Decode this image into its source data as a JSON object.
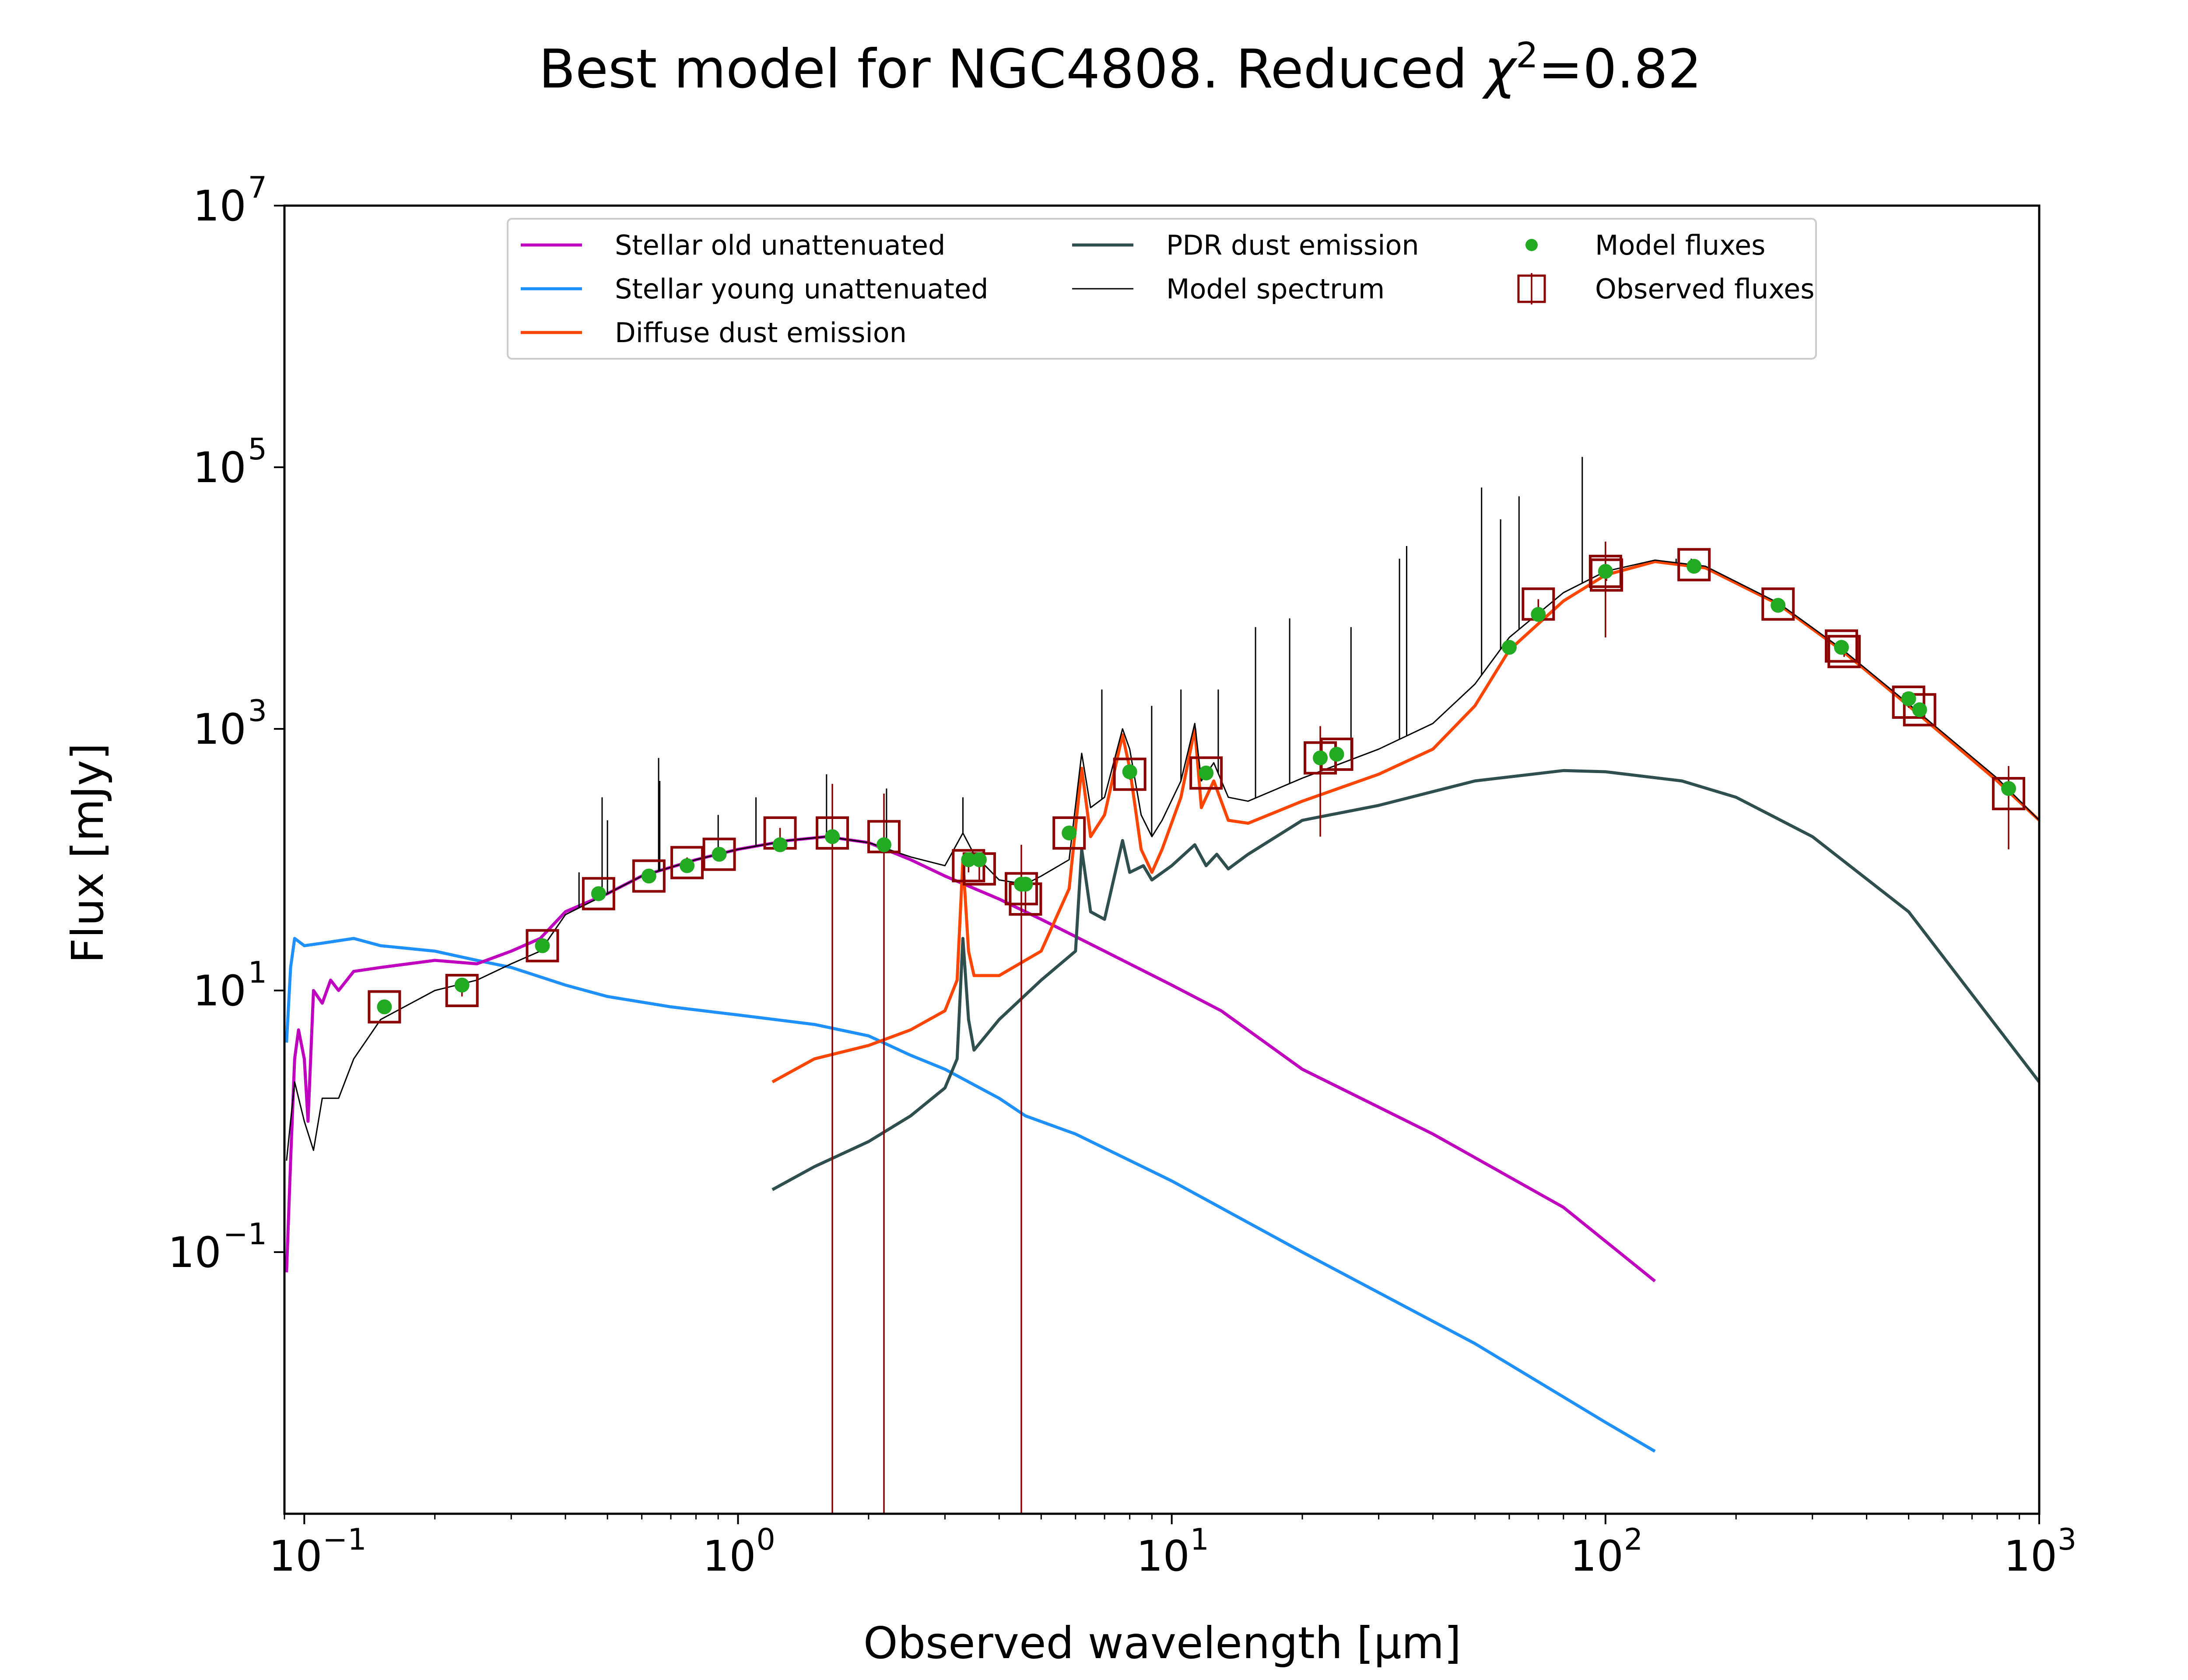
{
  "chart_data": {
    "type": "line",
    "title_text": "Best model for NGC4808. Reduced ",
    "title_chi": "χ",
    "title_sup": "2",
    "title_value": "=0.82",
    "xlabel": "Observed wavelength [μm]",
    "ylabel": "Flux [mJy]",
    "xscale": "log",
    "yscale": "log",
    "xlim": [
      0.09,
      1000
    ],
    "ylim": [
      0.001,
      10000000
    ],
    "x_ticks": [
      {
        "value": 0.1,
        "base": "10",
        "exp": "−1"
      },
      {
        "value": 1,
        "base": "10",
        "exp": "0"
      },
      {
        "value": 10,
        "base": "10",
        "exp": "1"
      },
      {
        "value": 100,
        "base": "10",
        "exp": "2"
      },
      {
        "value": 1000,
        "base": "10",
        "exp": "3"
      }
    ],
    "y_ticks": [
      {
        "value": 0.1,
        "base": "10",
        "exp": "−1"
      },
      {
        "value": 10,
        "base": "10",
        "exp": "1"
      },
      {
        "value": 1000,
        "base": "10",
        "exp": "3"
      },
      {
        "value": 100000,
        "base": "10",
        "exp": "5"
      },
      {
        "value": 10000000,
        "base": "10",
        "exp": "7"
      }
    ],
    "legend_position": "top-center",
    "colors": {
      "stellar_old": "#bf00bf",
      "stellar_young": "#1e90ff",
      "diffuse_dust": "#ff4500",
      "pdr_dust": "#2f4f4f",
      "model_spectrum": "#000000",
      "model_fluxes": "#22aa22",
      "observed_fluxes": "#8b0000"
    },
    "series": [
      {
        "name": "Stellar old unattenuated",
        "key": "stellar_old",
        "points": [
          [
            0.091,
            0.07
          ],
          [
            0.093,
            0.5
          ],
          [
            0.095,
            3
          ],
          [
            0.097,
            5
          ],
          [
            0.1,
            3
          ],
          [
            0.102,
            1
          ],
          [
            0.105,
            10
          ],
          [
            0.11,
            8
          ],
          [
            0.115,
            12
          ],
          [
            0.12,
            10
          ],
          [
            0.13,
            14
          ],
          [
            0.15,
            15
          ],
          [
            0.2,
            17
          ],
          [
            0.25,
            16
          ],
          [
            0.3,
            20
          ],
          [
            0.35,
            25
          ],
          [
            0.4,
            40
          ],
          [
            0.5,
            55
          ],
          [
            0.6,
            75
          ],
          [
            0.8,
            100
          ],
          [
            1.0,
            120
          ],
          [
            1.3,
            140
          ],
          [
            1.6,
            150
          ],
          [
            2.0,
            135
          ],
          [
            2.5,
            100
          ],
          [
            3.0,
            75
          ],
          [
            4.0,
            50
          ],
          [
            5.0,
            35
          ],
          [
            7.0,
            20
          ],
          [
            10.0,
            11
          ],
          [
            13.0,
            7
          ],
          [
            20.0,
            2.5
          ],
          [
            40.0,
            0.8
          ],
          [
            80.0,
            0.22
          ],
          [
            130.0,
            0.06
          ]
        ]
      },
      {
        "name": "Stellar young unattenuated",
        "key": "stellar_young",
        "points": [
          [
            0.091,
            4
          ],
          [
            0.093,
            15
          ],
          [
            0.095,
            25
          ],
          [
            0.1,
            22
          ],
          [
            0.11,
            23
          ],
          [
            0.13,
            25
          ],
          [
            0.15,
            22
          ],
          [
            0.2,
            20
          ],
          [
            0.25,
            17
          ],
          [
            0.3,
            15
          ],
          [
            0.4,
            11
          ],
          [
            0.5,
            9
          ],
          [
            0.7,
            7.5
          ],
          [
            1.0,
            6.5
          ],
          [
            1.5,
            5.5
          ],
          [
            2.0,
            4.5
          ],
          [
            2.5,
            3.2
          ],
          [
            3.0,
            2.5
          ],
          [
            4.0,
            1.5
          ],
          [
            4.6,
            1.1
          ],
          [
            6.0,
            0.8
          ],
          [
            10.0,
            0.35
          ],
          [
            20.0,
            0.1
          ],
          [
            50.0,
            0.02
          ],
          [
            100.0,
            0.005
          ],
          [
            130.0,
            0.003
          ]
        ]
      },
      {
        "name": "Diffuse dust emission",
        "key": "diffuse_dust",
        "points": [
          [
            1.2,
            2.0
          ],
          [
            1.5,
            3.0
          ],
          [
            2.0,
            3.8
          ],
          [
            2.5,
            5
          ],
          [
            3.0,
            7
          ],
          [
            3.2,
            12
          ],
          [
            3.3,
            100
          ],
          [
            3.4,
            20
          ],
          [
            3.5,
            13
          ],
          [
            4.0,
            13
          ],
          [
            5.0,
            20
          ],
          [
            5.8,
            60
          ],
          [
            6.2,
            500
          ],
          [
            6.5,
            150
          ],
          [
            7.0,
            220
          ],
          [
            7.7,
            900
          ],
          [
            8.0,
            500
          ],
          [
            8.5,
            120
          ],
          [
            9.0,
            80
          ],
          [
            9.5,
            120
          ],
          [
            10.5,
            300
          ],
          [
            11.3,
            1000
          ],
          [
            11.7,
            250
          ],
          [
            12.5,
            400
          ],
          [
            13.5,
            200
          ],
          [
            15.0,
            190
          ],
          [
            20.0,
            280
          ],
          [
            30.0,
            450
          ],
          [
            40.0,
            700
          ],
          [
            50.0,
            1500
          ],
          [
            60.0,
            4000
          ],
          [
            80.0,
            9500
          ],
          [
            100.0,
            15000
          ],
          [
            130.0,
            19000
          ],
          [
            170.0,
            17000
          ],
          [
            250.0,
            9000
          ],
          [
            350.0,
            4000
          ],
          [
            500.0,
            1500
          ],
          [
            800.0,
            400
          ],
          [
            1000.0,
            200
          ]
        ]
      },
      {
        "name": "PDR dust emission",
        "key": "pdr_dust",
        "points": [
          [
            1.2,
            0.3
          ],
          [
            1.5,
            0.45
          ],
          [
            2.0,
            0.7
          ],
          [
            2.5,
            1.1
          ],
          [
            3.0,
            1.8
          ],
          [
            3.2,
            3
          ],
          [
            3.3,
            25
          ],
          [
            3.4,
            6
          ],
          [
            3.5,
            3.5
          ],
          [
            4.0,
            6
          ],
          [
            5.0,
            12
          ],
          [
            6.0,
            20
          ],
          [
            6.2,
            120
          ],
          [
            6.5,
            40
          ],
          [
            7.0,
            35
          ],
          [
            7.7,
            140
          ],
          [
            8.0,
            80
          ],
          [
            8.6,
            90
          ],
          [
            9.0,
            70
          ],
          [
            10.0,
            90
          ],
          [
            11.3,
            130
          ],
          [
            12.0,
            90
          ],
          [
            12.7,
            110
          ],
          [
            13.5,
            85
          ],
          [
            15.0,
            110
          ],
          [
            20.0,
            200
          ],
          [
            30.0,
            260
          ],
          [
            50.0,
            400
          ],
          [
            80.0,
            480
          ],
          [
            100.0,
            470
          ],
          [
            150.0,
            400
          ],
          [
            200.0,
            300
          ],
          [
            300.0,
            150
          ],
          [
            500.0,
            40
          ],
          [
            1000.0,
            2
          ]
        ]
      },
      {
        "name": "Model spectrum",
        "key": "model_spectrum",
        "points": [
          [
            0.091,
            0.5
          ],
          [
            0.095,
            2
          ],
          [
            0.1,
            1
          ],
          [
            0.105,
            0.6
          ],
          [
            0.11,
            1.5
          ],
          [
            0.12,
            1.5
          ],
          [
            0.13,
            3
          ],
          [
            0.15,
            6
          ],
          [
            0.2,
            10
          ],
          [
            0.25,
            12
          ],
          [
            0.3,
            16
          ],
          [
            0.35,
            20
          ],
          [
            0.4,
            38
          ],
          [
            0.5,
            55
          ],
          [
            0.6,
            75
          ],
          [
            0.8,
            100
          ],
          [
            1.0,
            120
          ],
          [
            1.3,
            140
          ],
          [
            1.6,
            150
          ],
          [
            2.0,
            135
          ],
          [
            2.5,
            105
          ],
          [
            3.0,
            90
          ],
          [
            3.3,
            160
          ],
          [
            3.5,
            110
          ],
          [
            4.0,
            70
          ],
          [
            4.6,
            65
          ],
          [
            5.0,
            75
          ],
          [
            5.8,
            100
          ],
          [
            6.2,
            650
          ],
          [
            6.5,
            250
          ],
          [
            7.0,
            300
          ],
          [
            7.7,
            1000
          ],
          [
            8.0,
            700
          ],
          [
            8.5,
            220
          ],
          [
            9.0,
            150
          ],
          [
            9.5,
            200
          ],
          [
            10.5,
            400
          ],
          [
            11.3,
            1100
          ],
          [
            11.7,
            400
          ],
          [
            12.5,
            550
          ],
          [
            13.5,
            300
          ],
          [
            15.0,
            280
          ],
          [
            20.0,
            420
          ],
          [
            30.0,
            700
          ],
          [
            40.0,
            1100
          ],
          [
            50.0,
            2200
          ],
          [
            60.0,
            5000
          ],
          [
            80.0,
            11000
          ],
          [
            100.0,
            16000
          ],
          [
            130.0,
            19500
          ],
          [
            170.0,
            17500
          ],
          [
            250.0,
            9200
          ],
          [
            350.0,
            4100
          ],
          [
            500.0,
            1550
          ],
          [
            800.0,
            420
          ],
          [
            1000.0,
            200
          ]
        ],
        "lines": [
          [
            0.43,
            80
          ],
          [
            0.486,
            300
          ],
          [
            0.5,
            200
          ],
          [
            0.656,
            600
          ],
          [
            0.66,
            400
          ],
          [
            0.9,
            220
          ],
          [
            1.1,
            300
          ],
          [
            1.6,
            450
          ],
          [
            2.2,
            350
          ],
          [
            3.3,
            300
          ],
          [
            6.9,
            2000
          ],
          [
            8.99,
            1500
          ],
          [
            10.5,
            2000
          ],
          [
            12.8,
            2000
          ],
          [
            15.6,
            6000
          ],
          [
            18.7,
            7000
          ],
          [
            25.9,
            6000
          ],
          [
            33.5,
            20000
          ],
          [
            34.8,
            25000
          ],
          [
            51.8,
            70000
          ],
          [
            57.3,
            40000
          ],
          [
            63.2,
            60000
          ],
          [
            88.4,
            120000
          ],
          [
            145.5,
            20000
          ],
          [
            157.7,
            20000
          ]
        ]
      }
    ],
    "model_fluxes": [
      [
        0.153,
        7.5
      ],
      [
        0.231,
        11
      ],
      [
        0.354,
        22
      ],
      [
        0.477,
        55
      ],
      [
        0.623,
        75
      ],
      [
        0.763,
        90
      ],
      [
        0.905,
        110
      ],
      [
        1.25,
        130
      ],
      [
        1.65,
        150
      ],
      [
        2.17,
        130
      ],
      [
        3.4,
        100
      ],
      [
        3.6,
        100
      ],
      [
        4.5,
        65
      ],
      [
        4.6,
        65
      ],
      [
        5.8,
        160
      ],
      [
        8.0,
        470
      ],
      [
        12.0,
        460
      ],
      [
        22.0,
        600
      ],
      [
        24.0,
        640
      ],
      [
        60.0,
        4200
      ],
      [
        70.0,
        7500
      ],
      [
        100.0,
        16000
      ],
      [
        160.0,
        17500
      ],
      [
        250.0,
        8800
      ],
      [
        350.0,
        4200
      ],
      [
        500.0,
        1700
      ],
      [
        530.0,
        1400
      ],
      [
        850.0,
        350
      ]
    ],
    "observed_fluxes": [
      {
        "x": 0.153,
        "y": 7.5,
        "lo": 6.8,
        "hi": 8.3
      },
      {
        "x": 0.231,
        "y": 10,
        "lo": 9,
        "hi": 11
      },
      {
        "x": 0.354,
        "y": 22,
        "lo": 20,
        "hi": 24
      },
      {
        "x": 0.477,
        "y": 55,
        "lo": 50,
        "hi": 60
      },
      {
        "x": 0.623,
        "y": 75,
        "lo": 68,
        "hi": 82
      },
      {
        "x": 0.763,
        "y": 95,
        "lo": 86,
        "hi": 104
      },
      {
        "x": 0.905,
        "y": 110,
        "lo": 100,
        "hi": 120
      },
      {
        "x": 1.25,
        "y": 160,
        "lo": 145,
        "hi": 175
      },
      {
        "x": 1.65,
        "y": 160,
        "lo": 0.001,
        "hi": 380
      },
      {
        "x": 2.17,
        "y": 150,
        "lo": 0.001,
        "hi": 320
      },
      {
        "x": 3.4,
        "y": 90,
        "lo": 80,
        "hi": 100
      },
      {
        "x": 3.6,
        "y": 85,
        "lo": 70,
        "hi": 100
      },
      {
        "x": 4.5,
        "y": 60,
        "lo": 0.001,
        "hi": 130
      },
      {
        "x": 4.6,
        "y": 50,
        "lo": 40,
        "hi": 60
      },
      {
        "x": 5.8,
        "y": 160,
        "lo": 145,
        "hi": 175
      },
      {
        "x": 8.0,
        "y": 450,
        "lo": 410,
        "hi": 490
      },
      {
        "x": 12.0,
        "y": 460,
        "lo": 420,
        "hi": 500
      },
      {
        "x": 22.0,
        "y": 600,
        "lo": 150,
        "hi": 1050
      },
      {
        "x": 24.0,
        "y": 640,
        "lo": 580,
        "hi": 700
      },
      {
        "x": 70.0,
        "y": 9000,
        "lo": 8200,
        "hi": 9800
      },
      {
        "x": 100.0,
        "y": 16000,
        "lo": 5000,
        "hi": 27000
      },
      {
        "x": 100.5,
        "y": 15000,
        "lo": 13500,
        "hi": 16500
      },
      {
        "x": 160.0,
        "y": 18000,
        "lo": 16500,
        "hi": 19500
      },
      {
        "x": 250.0,
        "y": 9000,
        "lo": 8200,
        "hi": 9800
      },
      {
        "x": 350.0,
        "y": 4300,
        "lo": 3900,
        "hi": 4700
      },
      {
        "x": 355.0,
        "y": 3900,
        "lo": 3550,
        "hi": 4250
      },
      {
        "x": 500.0,
        "y": 1600,
        "lo": 1450,
        "hi": 1750
      },
      {
        "x": 530.0,
        "y": 1400,
        "lo": 1280,
        "hi": 1520
      },
      {
        "x": 850.0,
        "y": 320,
        "lo": 120,
        "hi": 520
      }
    ],
    "legend": [
      {
        "label": "Stellar old unattenuated",
        "key": "stellar_old",
        "kind": "line"
      },
      {
        "label": "Stellar young unattenuated",
        "key": "stellar_young",
        "kind": "line"
      },
      {
        "label": "Diffuse dust emission",
        "key": "diffuse_dust",
        "kind": "line"
      },
      {
        "label": "PDR dust emission",
        "key": "pdr_dust",
        "kind": "line"
      },
      {
        "label": "Model spectrum",
        "key": "model_spectrum",
        "kind": "thin-line"
      },
      {
        "label": "Model fluxes",
        "key": "model_fluxes",
        "kind": "dot"
      },
      {
        "label": "Observed fluxes",
        "key": "observed_fluxes",
        "kind": "square"
      }
    ]
  }
}
